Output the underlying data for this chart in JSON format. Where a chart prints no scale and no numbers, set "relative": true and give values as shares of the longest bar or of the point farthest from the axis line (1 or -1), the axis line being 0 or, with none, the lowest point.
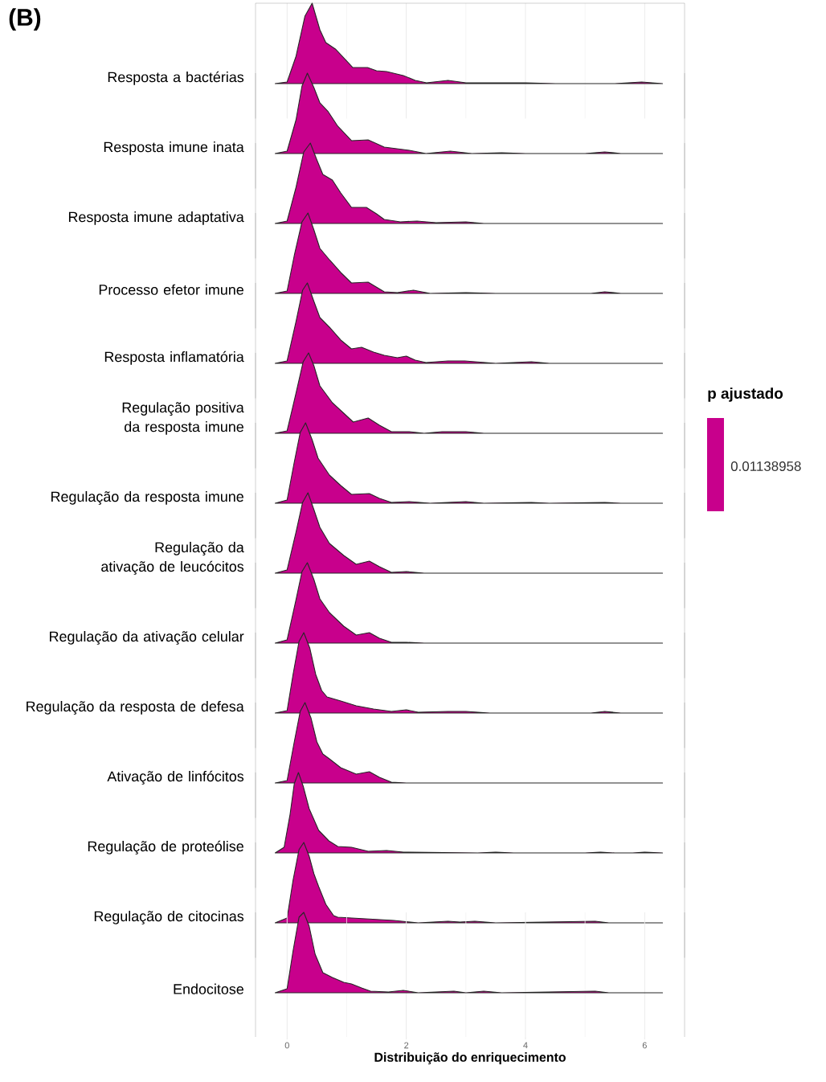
{
  "chart_data": [
    {
      "type": "area",
      "relative": true,
      "annotations": [
        "(B)"
      ],
      "xlim": [
        -0.53,
        6.67
      ],
      "xticks": [
        0,
        2,
        4,
        6
      ],
      "grid": "x",
      "tick_labels": false,
      "series": [
        {
          "name": "Resposta a bactérias",
          "color": "#c8008c",
          "x": [
            -0.2,
            0,
            0.15,
            0.3,
            0.42,
            0.55,
            0.65,
            0.81,
            1.0,
            1.1,
            1.35,
            1.5,
            1.67,
            1.95,
            2.15,
            2.34,
            2.7,
            3.0,
            3.5,
            4.0,
            4.5,
            5.5,
            5.95,
            6.3
          ],
          "values": [
            0,
            0.02,
            0.34,
            0.84,
            1,
            0.67,
            0.51,
            0.43,
            0.28,
            0.2,
            0.2,
            0.16,
            0.15,
            0.1,
            0.04,
            0.01,
            0.04,
            0.01,
            0.01,
            0.01,
            0,
            0,
            0.02,
            0
          ]
        }
      ]
    },
    {
      "type": "area",
      "relative": true,
      "xlim": [
        -0.53,
        6.67
      ],
      "xticks": [
        0,
        2,
        4,
        6
      ],
      "grid": "x",
      "tick_labels": false,
      "series": [
        {
          "name": "Resposta imune inata",
          "color": "#c8008c",
          "x": [
            -0.2,
            0,
            0.15,
            0.25,
            0.34,
            0.45,
            0.55,
            0.69,
            0.85,
            1.08,
            1.36,
            1.63,
            2.05,
            2.33,
            2.74,
            3.1,
            3.6,
            4.0,
            5.0,
            5.33,
            5.6,
            6.3
          ],
          "values": [
            0,
            0.03,
            0.42,
            0.84,
            1,
            0.82,
            0.63,
            0.52,
            0.34,
            0.16,
            0.17,
            0.08,
            0.04,
            0,
            0.03,
            0,
            0.01,
            0,
            0,
            0.02,
            0,
            0
          ]
        }
      ]
    },
    {
      "type": "area",
      "relative": true,
      "xlim": [
        -0.53,
        6.67
      ],
      "xticks": [
        0,
        2,
        4,
        6
      ],
      "grid": "x",
      "tick_labels": false,
      "series": [
        {
          "name": "Resposta imune adaptativa",
          "color": "#c8008c",
          "x": [
            -0.2,
            0,
            0.15,
            0.28,
            0.39,
            0.5,
            0.6,
            0.76,
            0.9,
            1.08,
            1.33,
            1.5,
            1.63,
            1.9,
            2.18,
            2.5,
            3.0,
            3.3,
            6.3
          ],
          "values": [
            0,
            0.03,
            0.45,
            0.89,
            1,
            0.79,
            0.61,
            0.54,
            0.38,
            0.2,
            0.2,
            0.12,
            0.05,
            0.02,
            0.03,
            0.01,
            0.02,
            0,
            0
          ]
        }
      ]
    },
    {
      "type": "area",
      "relative": true,
      "xlim": [
        -0.53,
        6.67
      ],
      "xticks": [
        0,
        2,
        4,
        6
      ],
      "grid": "x",
      "tick_labels": false,
      "series": [
        {
          "name": "Processo efetor imune",
          "color": "#c8008c",
          "x": [
            -0.2,
            0,
            0.12,
            0.25,
            0.35,
            0.45,
            0.55,
            0.72,
            0.9,
            1.08,
            1.36,
            1.63,
            1.85,
            2.12,
            2.4,
            3.0,
            3.5,
            5.1,
            5.33,
            5.6,
            6.3
          ],
          "values": [
            0,
            0.03,
            0.47,
            0.89,
            1,
            0.79,
            0.56,
            0.41,
            0.26,
            0.13,
            0.14,
            0.02,
            0.01,
            0.04,
            0,
            0.01,
            0,
            0,
            0.02,
            0,
            0
          ]
        }
      ]
    },
    {
      "type": "area",
      "relative": true,
      "xlim": [
        -0.53,
        6.67
      ],
      "xticks": [
        0,
        2,
        4,
        6
      ],
      "grid": "x",
      "tick_labels": false,
      "series": [
        {
          "name": "Resposta inflamatória",
          "color": "#c8008c",
          "x": [
            -0.2,
            0,
            0.15,
            0.26,
            0.34,
            0.45,
            0.55,
            0.71,
            0.9,
            1.08,
            1.25,
            1.45,
            1.63,
            1.85,
            2.0,
            2.15,
            2.33,
            2.7,
            2.98,
            3.5,
            4.1,
            4.4,
            6.3
          ],
          "values": [
            0,
            0.03,
            0.52,
            0.91,
            1,
            0.77,
            0.57,
            0.45,
            0.29,
            0.18,
            0.2,
            0.14,
            0.1,
            0.07,
            0.09,
            0.04,
            0.01,
            0.03,
            0.03,
            0,
            0.02,
            0,
            0
          ]
        }
      ]
    },
    {
      "type": "area",
      "relative": true,
      "xlim": [
        -0.53,
        6.67
      ],
      "xticks": [
        0,
        2,
        4,
        6
      ],
      "grid": "x",
      "tick_labels": false,
      "series": [
        {
          "name": "Regulação positiva da resposta imune",
          "color": "#c8008c",
          "x": [
            -0.2,
            0,
            0.15,
            0.27,
            0.36,
            0.45,
            0.55,
            0.76,
            0.95,
            1.11,
            1.36,
            1.55,
            1.75,
            2.05,
            2.3,
            2.6,
            3.0,
            3.3,
            6.3
          ],
          "values": [
            0,
            0.03,
            0.5,
            0.89,
            1,
            0.84,
            0.59,
            0.38,
            0.25,
            0.14,
            0.19,
            0.1,
            0.02,
            0.02,
            0,
            0.02,
            0.02,
            0,
            0
          ]
        }
      ]
    },
    {
      "type": "area",
      "relative": true,
      "xlim": [
        -0.53,
        6.67
      ],
      "xticks": [
        0,
        2,
        4,
        6
      ],
      "grid": "x",
      "tick_labels": false,
      "series": [
        {
          "name": "Regulação da resposta imune",
          "color": "#c8008c",
          "x": [
            -0.2,
            0,
            0.12,
            0.22,
            0.31,
            0.42,
            0.52,
            0.71,
            0.9,
            1.08,
            1.38,
            1.55,
            1.75,
            2.05,
            2.4,
            3.0,
            3.3,
            4.1,
            4.4,
            5.33,
            5.6,
            6.3
          ],
          "values": [
            0,
            0.04,
            0.51,
            0.88,
            1,
            0.79,
            0.56,
            0.35,
            0.22,
            0.11,
            0.12,
            0.06,
            0.01,
            0.02,
            0,
            0.02,
            0,
            0.01,
            0,
            0.01,
            0,
            0
          ]
        }
      ]
    },
    {
      "type": "area",
      "relative": true,
      "xlim": [
        -0.53,
        6.67
      ],
      "xticks": [
        0,
        2,
        4,
        6
      ],
      "grid": "x",
      "tick_labels": false,
      "series": [
        {
          "name": "Regulação da ativação de leucócitos",
          "color": "#c8008c",
          "x": [
            -0.2,
            0,
            0.15,
            0.26,
            0.35,
            0.45,
            0.55,
            0.71,
            0.95,
            1.16,
            1.38,
            1.55,
            1.75,
            2.0,
            2.3,
            6.3
          ],
          "values": [
            0,
            0.04,
            0.51,
            0.88,
            1,
            0.79,
            0.57,
            0.37,
            0.22,
            0.11,
            0.15,
            0.08,
            0.01,
            0.02,
            0,
            0
          ]
        }
      ]
    },
    {
      "type": "area",
      "relative": true,
      "xlim": [
        -0.53,
        6.67
      ],
      "xticks": [
        0,
        2,
        4,
        6
      ],
      "grid": "x",
      "tick_labels": false,
      "series": [
        {
          "name": "Regulação da ativação celular",
          "color": "#c8008c",
          "x": [
            -0.2,
            0,
            0.15,
            0.25,
            0.34,
            0.45,
            0.55,
            0.71,
            0.95,
            1.16,
            1.38,
            1.55,
            1.75,
            2.0,
            2.3,
            6.3
          ],
          "values": [
            0,
            0.04,
            0.54,
            0.89,
            1,
            0.79,
            0.55,
            0.38,
            0.21,
            0.1,
            0.13,
            0.06,
            0.01,
            0.01,
            0,
            0
          ]
        }
      ]
    },
    {
      "type": "area",
      "relative": true,
      "xlim": [
        -0.53,
        6.67
      ],
      "xticks": [
        0,
        2,
        4,
        6
      ],
      "grid": "x",
      "tick_labels": false,
      "series": [
        {
          "name": "Regulação da resposta de defesa",
          "color": "#c8008c",
          "x": [
            -0.2,
            0,
            0.1,
            0.2,
            0.28,
            0.38,
            0.48,
            0.58,
            0.67,
            0.9,
            1.16,
            1.45,
            1.75,
            2.0,
            2.2,
            2.7,
            3.0,
            3.4,
            5.1,
            5.33,
            5.6,
            6.3
          ],
          "values": [
            0,
            0.03,
            0.48,
            0.89,
            1,
            0.81,
            0.48,
            0.28,
            0.2,
            0.15,
            0.09,
            0.05,
            0.02,
            0.04,
            0.01,
            0.02,
            0.02,
            0,
            0,
            0.02,
            0,
            0
          ]
        }
      ]
    },
    {
      "type": "area",
      "relative": true,
      "xlim": [
        -0.53,
        6.67
      ],
      "xticks": [
        0,
        2,
        4,
        6
      ],
      "grid": "x",
      "tick_labels": false,
      "series": [
        {
          "name": "Ativação de linfócitos",
          "color": "#c8008c",
          "x": [
            -0.2,
            0,
            0.12,
            0.22,
            0.3,
            0.4,
            0.5,
            0.6,
            0.71,
            0.9,
            1.16,
            1.38,
            1.55,
            1.75,
            2.0,
            6.3
          ],
          "values": [
            0,
            0.03,
            0.51,
            0.89,
            1,
            0.81,
            0.51,
            0.36,
            0.3,
            0.19,
            0.11,
            0.14,
            0.07,
            0.01,
            0,
            0
          ]
        }
      ]
    },
    {
      "type": "area",
      "relative": true,
      "xlim": [
        -0.53,
        6.67
      ],
      "xticks": [
        0,
        2,
        4,
        6
      ],
      "grid": "x",
      "tick_labels": false,
      "series": [
        {
          "name": "Regulação de proteólise",
          "color": "#c8008c",
          "x": [
            -0.2,
            -0.05,
            0.05,
            0.12,
            0.19,
            0.27,
            0.37,
            0.53,
            0.7,
            0.85,
            1.08,
            1.36,
            1.67,
            1.95,
            3.2,
            3.5,
            3.8,
            5.0,
            5.26,
            5.5,
            5.8,
            6.0,
            6.3
          ],
          "values": [
            0,
            0.07,
            0.48,
            0.86,
            1,
            0.83,
            0.55,
            0.28,
            0.15,
            0.08,
            0.07,
            0.02,
            0.03,
            0.01,
            0,
            0.01,
            0,
            0,
            0.01,
            0,
            0,
            0.01,
            0
          ]
        }
      ]
    },
    {
      "type": "area",
      "relative": true,
      "xlim": [
        -0.53,
        6.67
      ],
      "xticks": [
        0,
        2,
        4,
        6
      ],
      "grid": "x",
      "tick_labels": false,
      "series": [
        {
          "name": "Regulação de citocinas",
          "color": "#c8008c",
          "x": [
            -0.2,
            0,
            0.1,
            0.2,
            0.28,
            0.37,
            0.45,
            0.53,
            0.65,
            0.78,
            0.85,
            1.32,
            1.79,
            2.2,
            2.7,
            2.9,
            3.15,
            3.5,
            5.17,
            5.4,
            6.3
          ],
          "values": [
            0,
            0.06,
            0.53,
            0.91,
            1,
            0.83,
            0.61,
            0.45,
            0.23,
            0.09,
            0.07,
            0.05,
            0.03,
            0,
            0.02,
            0.01,
            0.02,
            0,
            0.02,
            0,
            0
          ]
        }
      ]
    },
    {
      "type": "area",
      "relative": true,
      "xlabel": "Distribuição do enriquecimento",
      "xlim": [
        -0.53,
        6.67
      ],
      "xticks": [
        0,
        2,
        4,
        6
      ],
      "grid": "x",
      "tick_labels": "x",
      "series": [
        {
          "name": "Endocitose",
          "color": "#c8008c",
          "x": [
            -0.2,
            0,
            0.1,
            0.2,
            0.28,
            0.37,
            0.47,
            0.6,
            0.76,
            0.95,
            1.08,
            1.25,
            1.4,
            1.7,
            1.95,
            2.2,
            2.8,
            3.0,
            3.3,
            3.6,
            5.17,
            5.4,
            6.3
          ],
          "values": [
            0,
            0.05,
            0.52,
            0.94,
            1,
            0.83,
            0.48,
            0.25,
            0.19,
            0.13,
            0.11,
            0.06,
            0.02,
            0.01,
            0.03,
            0,
            0.02,
            0,
            0.02,
            0,
            0.02,
            0,
            0
          ]
        }
      ]
    },
    {
      "type": "other",
      "title": "p ajustado",
      "annotations": [
        "0.01138958"
      ],
      "color": "#c8008c"
    }
  ]
}
